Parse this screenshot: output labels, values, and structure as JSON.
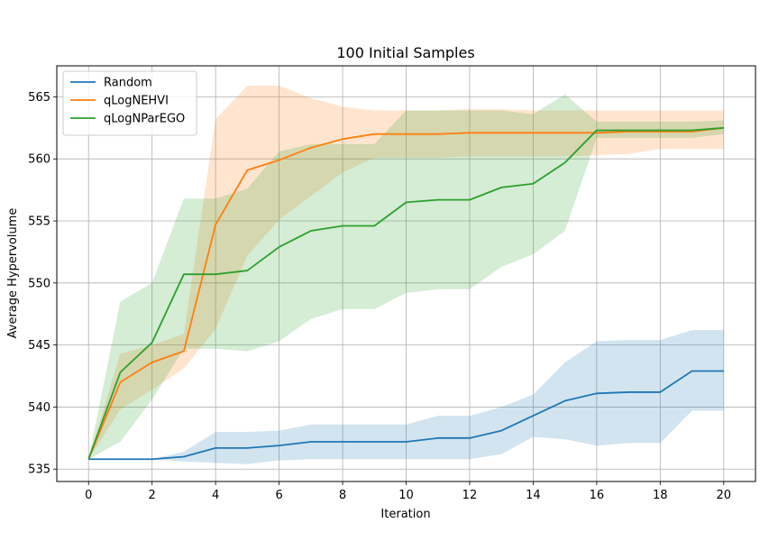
{
  "chart_data": {
    "type": "line",
    "title": "100 Initial Samples",
    "xlabel": "Iteration",
    "ylabel": "Average Hypervolume",
    "xlim": [
      -1,
      21
    ],
    "ylim": [
      534,
      567.5
    ],
    "xticks": [
      0,
      2,
      4,
      6,
      8,
      10,
      12,
      14,
      16,
      18,
      20
    ],
    "yticks": [
      535,
      540,
      545,
      550,
      555,
      560,
      565
    ],
    "grid": true,
    "legend_position": "top-left",
    "x": [
      0,
      1,
      2,
      3,
      4,
      5,
      6,
      7,
      8,
      9,
      10,
      11,
      12,
      13,
      14,
      15,
      16,
      17,
      18,
      19,
      20
    ],
    "series": [
      {
        "name": "Random",
        "color": "#1f77b4",
        "band_color": "#1f77b4",
        "values": [
          535.8,
          535.8,
          535.8,
          536.0,
          536.7,
          536.7,
          536.9,
          537.2,
          537.2,
          537.2,
          537.2,
          537.5,
          537.5,
          538.1,
          539.3,
          540.5,
          541.1,
          541.2,
          541.2,
          542.9,
          542.9
        ],
        "lower": [
          535.8,
          535.8,
          535.8,
          535.6,
          535.5,
          535.4,
          535.7,
          535.8,
          535.8,
          535.8,
          535.8,
          535.8,
          535.8,
          536.2,
          537.6,
          537.4,
          536.9,
          537.1,
          537.1,
          539.7,
          539.7
        ],
        "upper": [
          535.8,
          535.8,
          535.8,
          536.4,
          538.0,
          538.0,
          538.1,
          538.6,
          538.6,
          538.6,
          538.6,
          539.3,
          539.3,
          540.0,
          541.0,
          543.6,
          545.3,
          545.4,
          545.4,
          546.2,
          546.2
        ]
      },
      {
        "name": "qLogNEHVI",
        "color": "#ff7f0e",
        "band_color": "#ff7f0e",
        "values": [
          535.8,
          542.0,
          543.6,
          544.5,
          554.7,
          559.1,
          559.9,
          560.9,
          561.6,
          562.0,
          562.0,
          562.0,
          562.1,
          562.1,
          562.1,
          562.1,
          562.1,
          562.2,
          562.2,
          562.2,
          562.5
        ],
        "lower": [
          535.8,
          539.8,
          541.4,
          543.1,
          546.3,
          552.2,
          555.1,
          557.0,
          558.9,
          560.1,
          560.1,
          560.1,
          560.2,
          560.2,
          560.2,
          560.2,
          560.3,
          560.4,
          560.8,
          560.8,
          560.8
        ],
        "upper": [
          535.8,
          544.3,
          545.0,
          545.9,
          563.2,
          565.9,
          565.9,
          564.9,
          564.2,
          563.9,
          563.9,
          563.9,
          564.0,
          564.0,
          563.9,
          563.9,
          563.9,
          563.9,
          563.9,
          563.9,
          563.9
        ]
      },
      {
        "name": "qLogNParEGO",
        "color": "#2ca02c",
        "band_color": "#2ca02c",
        "values": [
          535.8,
          542.8,
          545.2,
          550.7,
          550.7,
          551.0,
          552.9,
          554.2,
          554.6,
          554.6,
          556.5,
          556.7,
          556.7,
          557.7,
          558.0,
          559.7,
          562.3,
          562.3,
          562.3,
          562.3,
          562.5
        ],
        "lower": [
          535.8,
          537.2,
          540.6,
          544.7,
          544.7,
          544.5,
          545.3,
          547.1,
          547.9,
          547.9,
          549.2,
          549.5,
          549.5,
          551.3,
          552.3,
          554.2,
          561.7,
          561.7,
          561.7,
          561.7,
          562.0
        ],
        "upper": [
          535.8,
          548.5,
          550.0,
          556.8,
          556.8,
          557.6,
          560.6,
          561.2,
          561.2,
          561.2,
          563.9,
          563.9,
          563.9,
          563.9,
          563.6,
          565.2,
          563.0,
          563.0,
          563.0,
          563.0,
          563.1
        ]
      }
    ]
  }
}
